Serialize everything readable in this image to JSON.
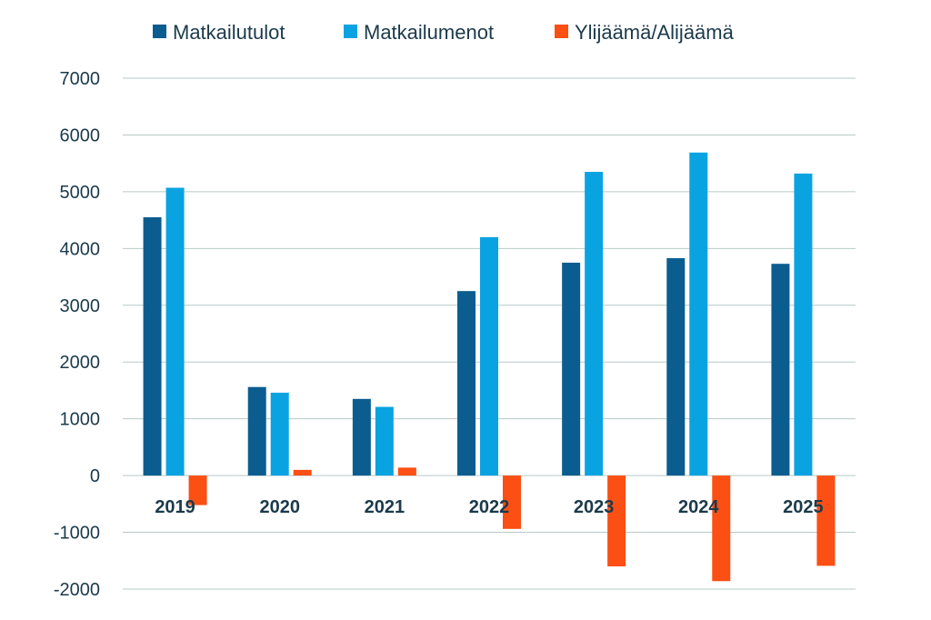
{
  "chart_data": {
    "type": "bar",
    "categories": [
      "2019",
      "2020",
      "2021",
      "2022",
      "2023",
      "2024",
      "2025"
    ],
    "series": [
      {
        "name": "Matkailutulot",
        "color": "#0b5d8f",
        "values": [
          4550,
          1560,
          1350,
          3250,
          3750,
          3830,
          3730
        ]
      },
      {
        "name": "Matkailumenot",
        "color": "#0aa3e2",
        "values": [
          5070,
          1460,
          1210,
          4200,
          5350,
          5690,
          5320
        ]
      },
      {
        "name": "Ylijäämä/Alijäämä",
        "color": "#fb4f14",
        "values": [
          -520,
          100,
          140,
          -940,
          -1600,
          -1860,
          -1590
        ]
      }
    ],
    "y_ticks": [
      "7000",
      "6000",
      "5000",
      "4000",
      "3000",
      "2000",
      "1000",
      "0",
      "-1000",
      "-2000"
    ],
    "ylim": [
      -2000,
      7000
    ],
    "grid": true,
    "legend_position": "top",
    "title": "",
    "xlabel": "",
    "ylabel": ""
  }
}
